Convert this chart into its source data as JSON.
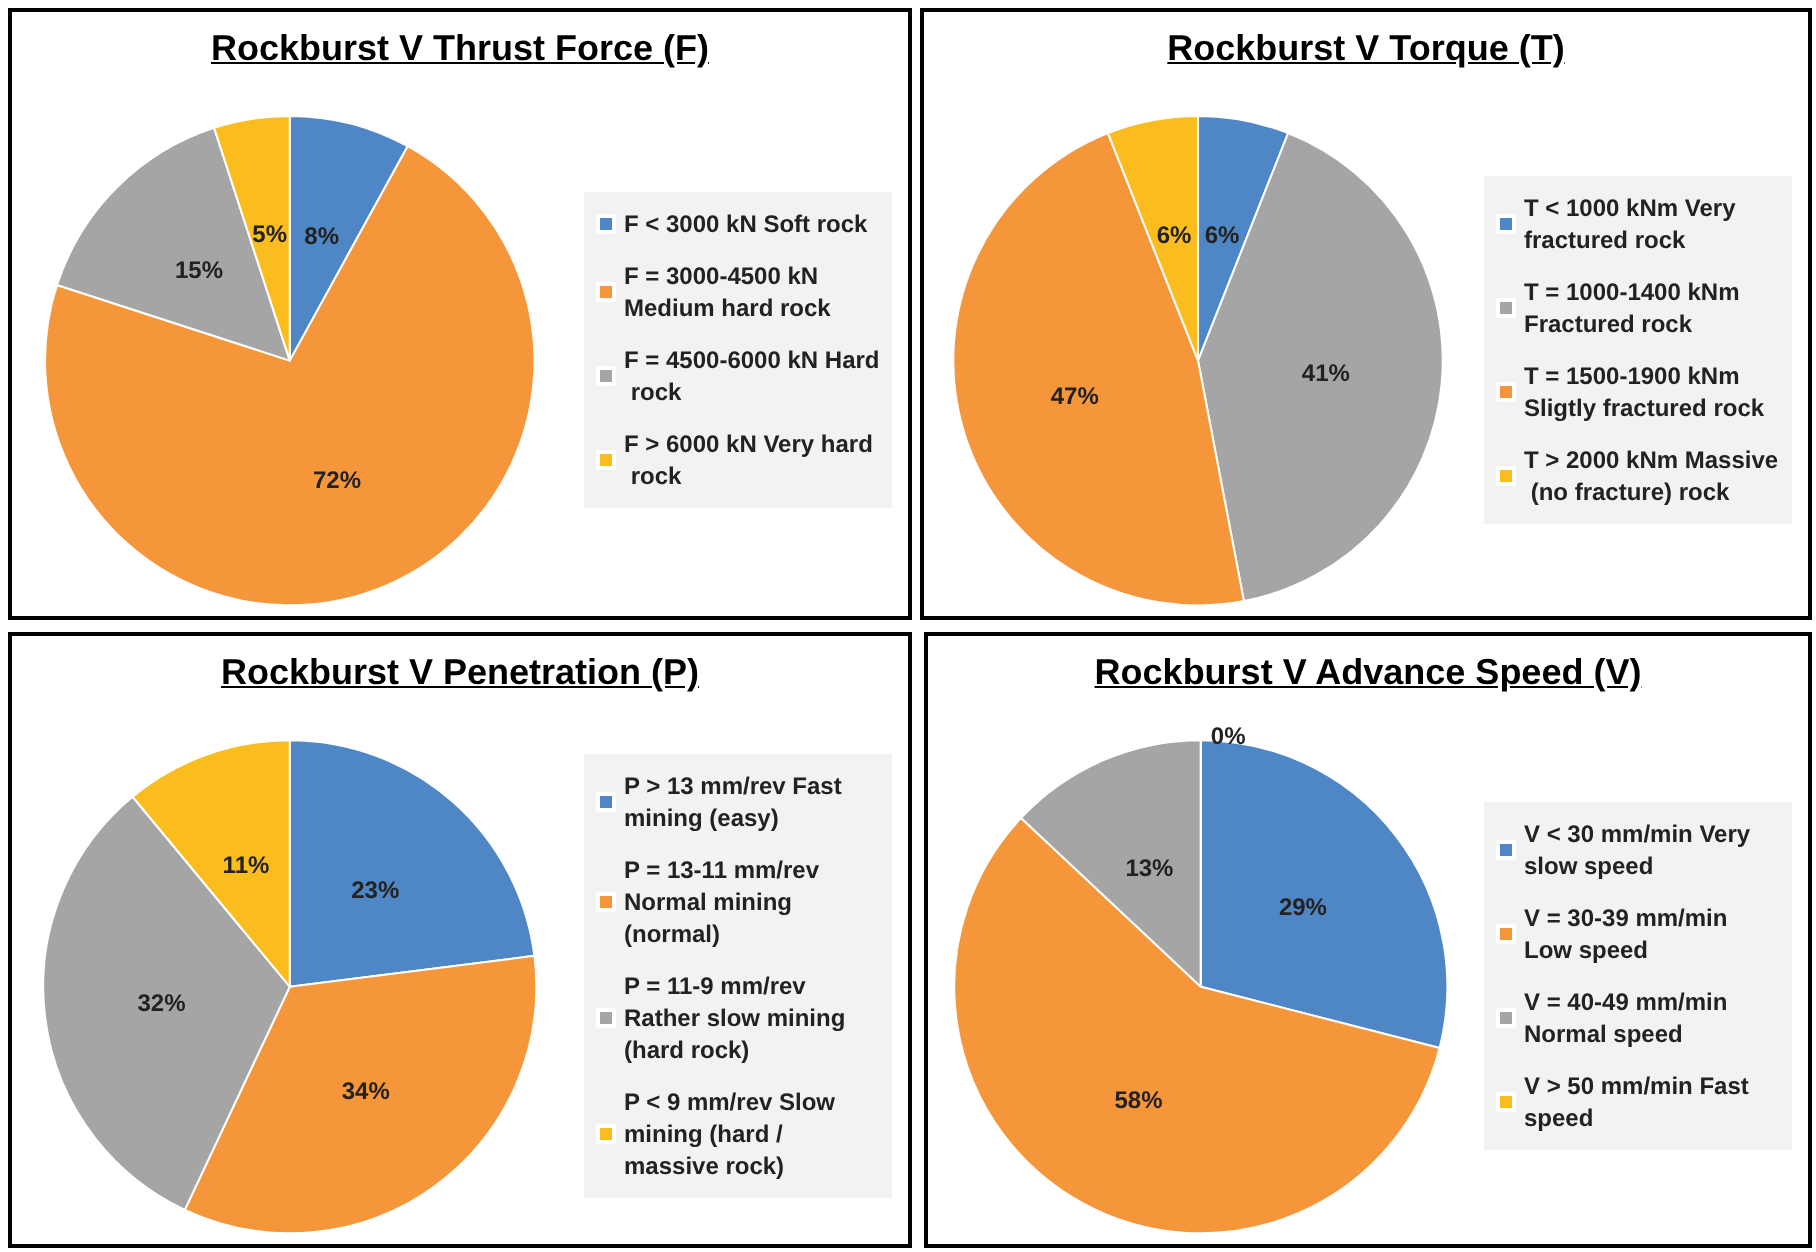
{
  "chart_data": [
    {
      "type": "pie",
      "title": "Rockburst V Thrust Force (F)",
      "legend": "right",
      "categories": [
        "F < 3000 kN Soft rock",
        "F = 3000-4500 kN Medium hard rock",
        "F = 4500-6000 kN Hard rock",
        "F > 6000 kN Very hard rock"
      ],
      "values": [
        8,
        72,
        15,
        5
      ],
      "value_labels": [
        "8%",
        "72%",
        "15%",
        "5%"
      ],
      "colors": [
        "#4f86c6",
        "#f5963a",
        "#a5a5a5",
        "#fbbd1e"
      ]
    },
    {
      "type": "pie",
      "title": "Rockburst V Torque (T)",
      "legend": "right",
      "categories": [
        "T < 1000 kNm Very fractured rock",
        "T = 1000-1400 kNm Fractured rock",
        "T = 1500-1900 kNm Sligtly fractured rock",
        "T > 2000 kNm Massive (no fracture) rock"
      ],
      "values": [
        6,
        41,
        47,
        6
      ],
      "value_labels": [
        "6%",
        "41%",
        "47%",
        "6%"
      ],
      "colors": [
        "#4f86c6",
        "#a5a5a5",
        "#f5963a",
        "#fbbd1e"
      ]
    },
    {
      "type": "pie",
      "title": "Rockburst V Penetration (P)",
      "legend": "right",
      "categories": [
        "P > 13 mm/rev Fast mining (easy)",
        "P = 13-11 mm/rev Normal mining (normal)",
        "P = 11-9 mm/rev Rather slow mining (hard rock)",
        "P < 9 mm/rev Slow mining (hard / massive rock)"
      ],
      "values": [
        23,
        34,
        32,
        11
      ],
      "value_labels": [
        "23%",
        "34%",
        "32%",
        "11%"
      ],
      "colors": [
        "#4f86c6",
        "#f5963a",
        "#a5a5a5",
        "#fbbd1e"
      ]
    },
    {
      "type": "pie",
      "title": "Rockburst V Advance Speed (V)",
      "legend": "right",
      "categories": [
        "V < 30 mm/min Very slow speed",
        "V = 30-39 mm/min Low speed",
        "V = 40-49 mm/min Normal speed",
        "V > 50 mm/min Fast speed"
      ],
      "values": [
        29,
        58,
        13,
        0
      ],
      "value_labels": [
        "29%",
        "58%",
        "13%",
        "0%"
      ],
      "colors": [
        "#4f86c6",
        "#f5963a",
        "#a5a5a5",
        "#fbbd1e"
      ]
    }
  ]
}
